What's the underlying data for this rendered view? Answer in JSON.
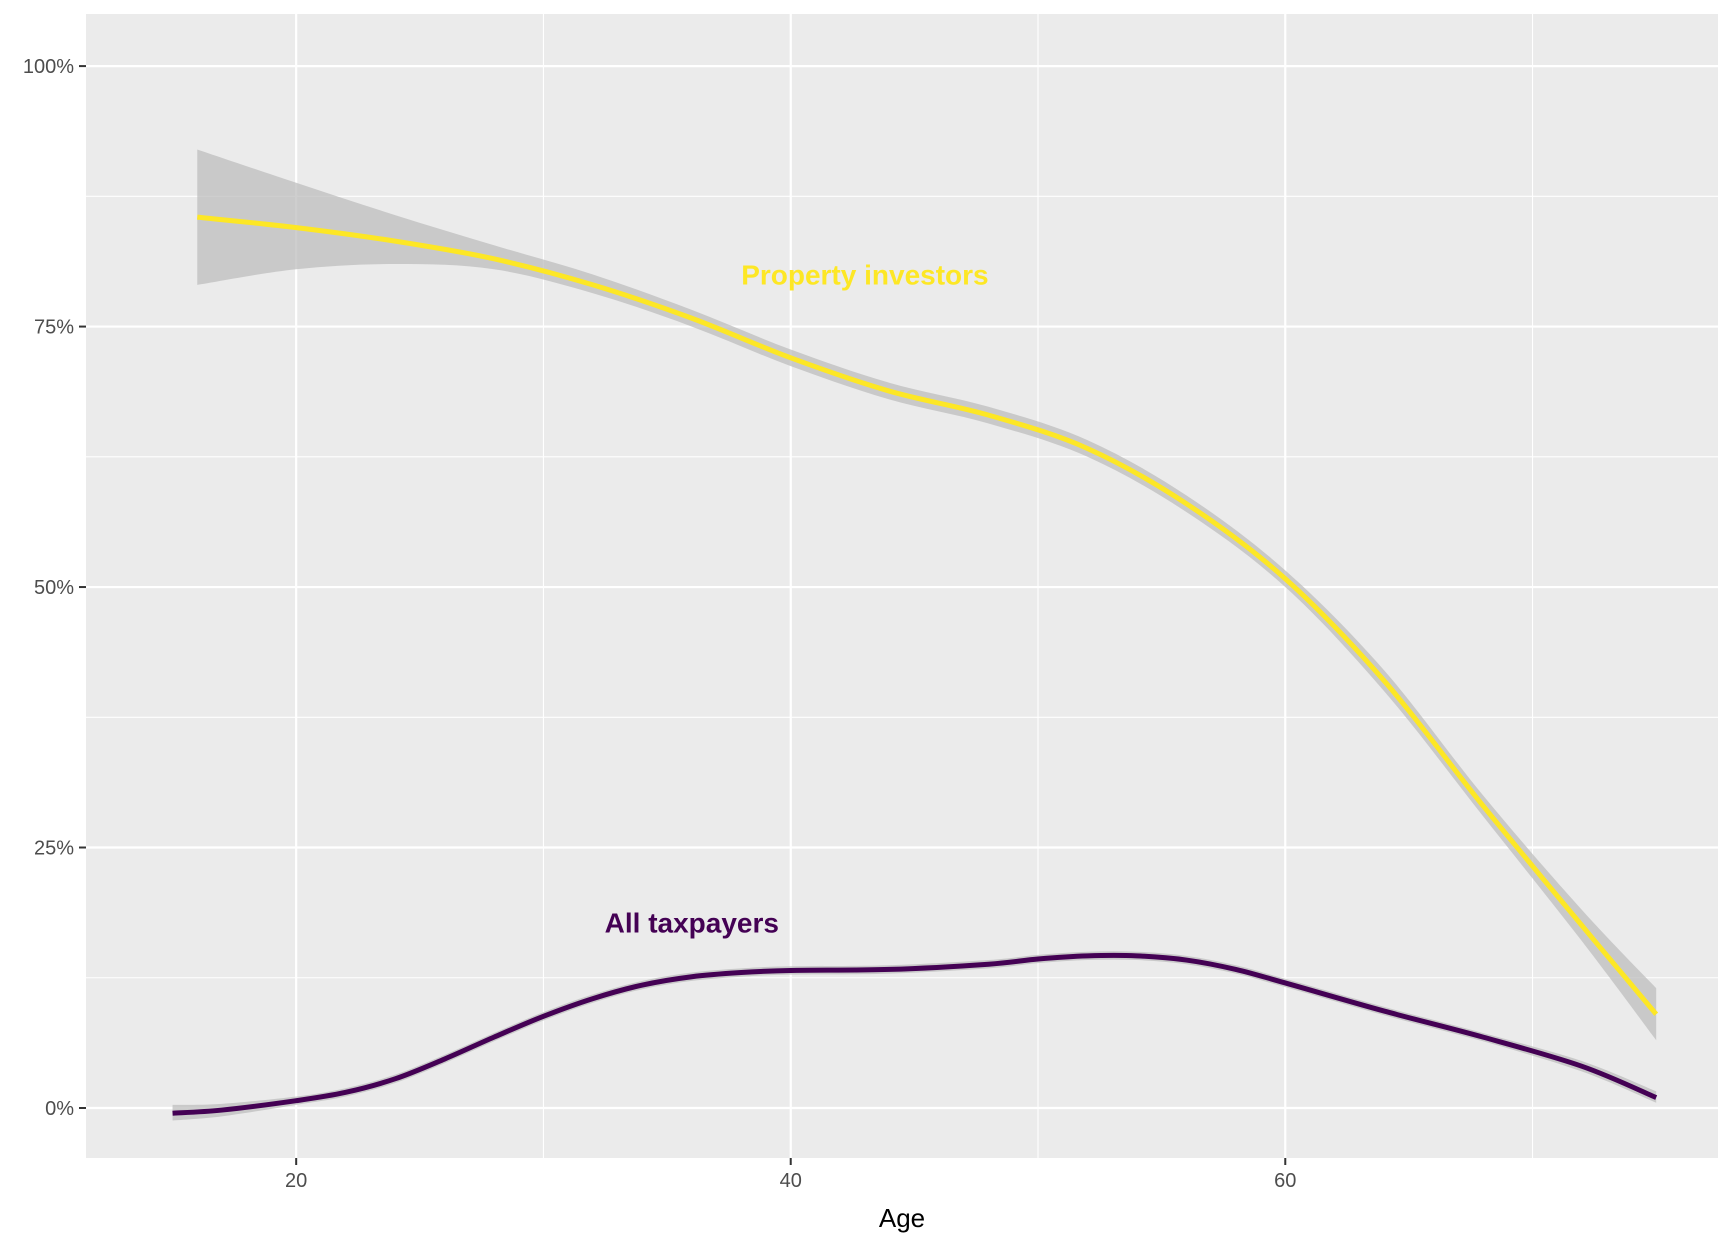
{
  "chart_data": {
    "type": "line",
    "title": "",
    "xlabel": "Age",
    "ylabel": "",
    "xlim": [
      11.5,
      77.5
    ],
    "ylim": [
      -0.048,
      1.05
    ],
    "x_ticks": [
      20,
      40,
      60
    ],
    "x_tick_labels": [
      "20",
      "40",
      "60"
    ],
    "y_ticks": [
      0,
      0.25,
      0.5,
      0.75,
      1.0
    ],
    "y_tick_labels": [
      "0%",
      "25%",
      "50%",
      "75%",
      "100%"
    ],
    "grid": true,
    "legend": "none",
    "background_color": "#ebebeb",
    "grid_color": "#ffffff",
    "ribbon_color": "#bdbdbd",
    "series": [
      {
        "name": "Property investors",
        "color": "#fde725",
        "label_position": {
          "x": 43,
          "y": 0.8
        },
        "x": [
          16,
          20,
          24,
          28,
          32,
          36,
          40,
          44,
          48,
          52,
          56,
          60,
          64,
          68,
          72,
          75
        ],
        "y": [
          0.855,
          0.845,
          0.832,
          0.815,
          0.79,
          0.758,
          0.72,
          0.688,
          0.665,
          0.633,
          0.58,
          0.508,
          0.41,
          0.29,
          0.175,
          0.09
        ],
        "lower": [
          0.79,
          0.805,
          0.81,
          0.805,
          0.782,
          0.75,
          0.712,
          0.68,
          0.657,
          0.625,
          0.572,
          0.5,
          0.4,
          0.28,
          0.16,
          0.065
        ],
        "upper": [
          0.92,
          0.888,
          0.857,
          0.828,
          0.8,
          0.766,
          0.728,
          0.696,
          0.673,
          0.641,
          0.588,
          0.516,
          0.42,
          0.3,
          0.19,
          0.115
        ]
      },
      {
        "name": "All taxpayers",
        "color": "#440154",
        "label_position": {
          "x": 36,
          "y": 0.178
        },
        "x": [
          15,
          17,
          20,
          22,
          24,
          26,
          28,
          30,
          32,
          34,
          36,
          38,
          40,
          44,
          48,
          50,
          52,
          54,
          56,
          58,
          60,
          64,
          68,
          72,
          75
        ],
        "y": [
          -0.005,
          -0.002,
          0.007,
          0.015,
          0.028,
          0.047,
          0.068,
          0.088,
          0.105,
          0.118,
          0.126,
          0.13,
          0.132,
          0.133,
          0.138,
          0.143,
          0.146,
          0.146,
          0.142,
          0.133,
          0.12,
          0.093,
          0.068,
          0.04,
          0.01
        ],
        "lower": [
          -0.012,
          -0.008,
          0.003,
          0.011,
          0.024,
          0.043,
          0.064,
          0.084,
          0.101,
          0.114,
          0.122,
          0.126,
          0.128,
          0.129,
          0.134,
          0.139,
          0.142,
          0.142,
          0.138,
          0.129,
          0.116,
          0.089,
          0.064,
          0.035,
          0.005
        ],
        "upper": [
          0.003,
          0.004,
          0.011,
          0.019,
          0.032,
          0.051,
          0.072,
          0.092,
          0.109,
          0.122,
          0.13,
          0.134,
          0.136,
          0.137,
          0.142,
          0.147,
          0.15,
          0.15,
          0.146,
          0.137,
          0.124,
          0.097,
          0.072,
          0.045,
          0.016
        ]
      }
    ]
  }
}
